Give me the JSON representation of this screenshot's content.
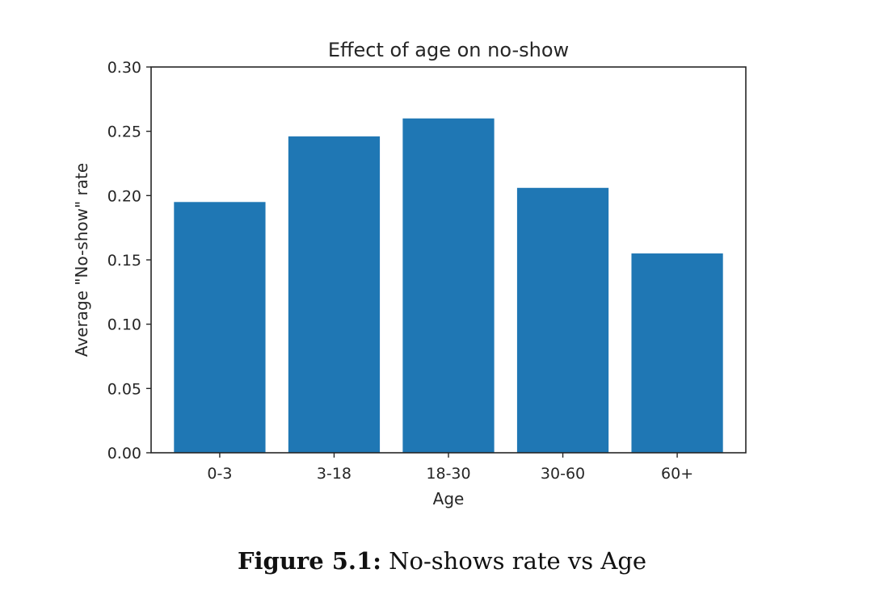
{
  "chart_data": {
    "type": "bar",
    "title": "Effect of age on no-show",
    "xlabel": "Age",
    "ylabel": "Average \"No-show\" rate",
    "categories": [
      "0-3",
      "3-18",
      "18-30",
      "30-60",
      "60+"
    ],
    "values": [
      0.195,
      0.246,
      0.26,
      0.206,
      0.155
    ],
    "ylim": [
      0,
      0.3
    ],
    "yticks": [
      "0.00",
      "0.05",
      "0.10",
      "0.15",
      "0.20",
      "0.25",
      "0.30"
    ],
    "bar_color": "#1f77b4",
    "grid": false,
    "legend": false
  },
  "caption": {
    "label": "Figure 5.1:",
    "text": "No-shows rate vs Age"
  }
}
